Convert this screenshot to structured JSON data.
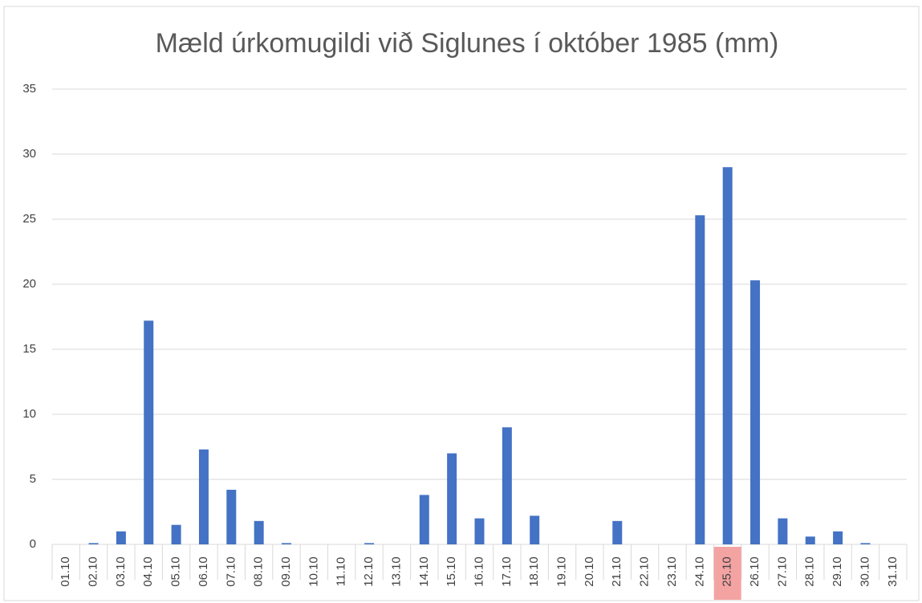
{
  "chart_data": {
    "type": "bar",
    "title": "Mæld úrkomugildi við Siglunes í október 1985 (mm)",
    "categories": [
      "01.10",
      "02.10",
      "03.10",
      "04.10",
      "05.10",
      "06.10",
      "07.10",
      "08.10",
      "09.10",
      "10.10",
      "11.10",
      "12.10",
      "13.10",
      "14.10",
      "15.10",
      "16.10",
      "17.10",
      "18.10",
      "19.10",
      "20.10",
      "21.10",
      "22.10",
      "23.10",
      "24.10",
      "25.10",
      "26.10",
      "27.10",
      "28.10",
      "29.10",
      "30.10",
      "31.10"
    ],
    "values": [
      0,
      0.1,
      1,
      17.2,
      1.5,
      7.3,
      4.2,
      1.8,
      0.1,
      0,
      0,
      0.1,
      0,
      3.8,
      7,
      2,
      9,
      2.2,
      0,
      0,
      1.8,
      0,
      0,
      25.3,
      29,
      20.3,
      2,
      0.6,
      1,
      0.1,
      0
    ],
    "color": "#4472c4",
    "highlight_index": 24,
    "highlight_color": "#f4a3a3",
    "ylim": [
      0,
      35
    ],
    "yticks": [
      0,
      5,
      10,
      15,
      20,
      25,
      30,
      35
    ],
    "grid": true
  }
}
